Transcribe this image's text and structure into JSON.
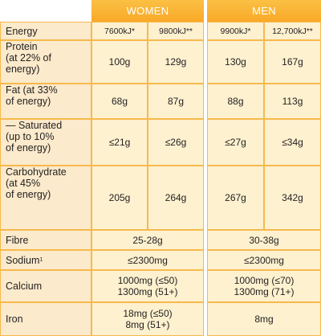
{
  "header": {
    "women": "WOMEN",
    "men": "MEN"
  },
  "energy": {
    "label": "Energy",
    "women_a": "7600kJ*",
    "women_b": "9800kJ**",
    "men_a": "9900kJ*",
    "men_b": "12,700kJ**"
  },
  "protein": {
    "label": [
      "Protein",
      "(at 22% of",
      "energy)"
    ],
    "women_a": "100g",
    "women_b": "129g",
    "men_a": "130g",
    "men_b": "167g"
  },
  "fat": {
    "label": [
      "Fat (at 33%",
      "of energy)"
    ],
    "women_a": "68g",
    "women_b": "87g",
    "men_a": "88g",
    "men_b": "113g"
  },
  "saturated": {
    "label": [
      "— Saturated",
      "(up to 10%",
      "of energy)"
    ],
    "women_a": "≤21g",
    "women_b": "≤26g",
    "men_a": "≤27g",
    "men_b": "≤34g"
  },
  "carbohydrate": {
    "label": [
      "Carbohydrate",
      "(at 45%",
      "of energy)"
    ],
    "women_a": "205g",
    "women_b": "264g",
    "men_a": "267g",
    "men_b": "342g"
  },
  "fibre": {
    "label": "Fibre",
    "women": "25-28g",
    "men": "30-38g"
  },
  "sodium": {
    "label": "Sodium",
    "footnote": "1",
    "women": "≤2300mg",
    "men": "≤2300mg"
  },
  "calcium": {
    "label": "Calcium",
    "women": [
      "1000mg (≤50)",
      "1300mg (51+)"
    ],
    "men": [
      "1000mg (≤70)",
      "1300mg (71+)"
    ]
  },
  "iron": {
    "label": "Iron",
    "women": [
      "18mg (≤50)",
      "8mg (51+)"
    ],
    "men": "8mg"
  }
}
